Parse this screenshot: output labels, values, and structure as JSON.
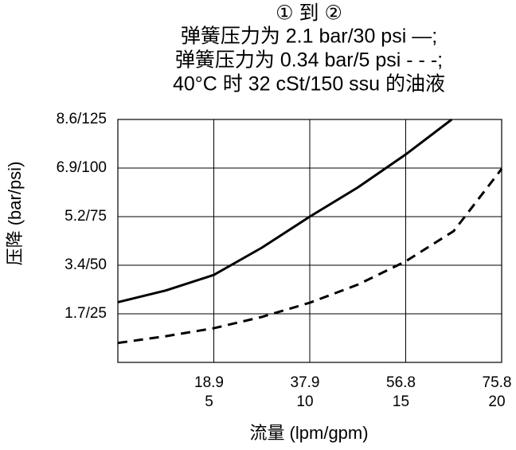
{
  "chart_data": {
    "type": "line",
    "title": [
      "① 到 ②",
      "弹簧压力为 2.1 bar/30 psi —;",
      "弹簧压力为 0.34 bar/5 psi - - -;",
      "40°C 时 32 cSt/150 ssu 的油液"
    ],
    "x_label": "流量 (lpm/gpm)",
    "y_label": "压降 (bar/psi)",
    "xlim": [
      0,
      20
    ],
    "ylim": [
      0,
      125
    ],
    "xticks": [
      {
        "value": 5,
        "label": [
          "18.9",
          "5"
        ]
      },
      {
        "value": 10,
        "label": [
          "37.9",
          "10"
        ]
      },
      {
        "value": 15,
        "label": [
          "56.8",
          "15"
        ]
      },
      {
        "value": 20,
        "label": [
          "75.8",
          "20"
        ]
      }
    ],
    "yticks": [
      {
        "value": 25,
        "label": "1.7/25"
      },
      {
        "value": 50,
        "label": "3.4/50"
      },
      {
        "value": 75,
        "label": "5.2/75"
      },
      {
        "value": 100,
        "label": "6.9/100"
      },
      {
        "value": 125,
        "label": "8.6/125"
      }
    ],
    "grid": true,
    "series": [
      {
        "color": "#000000",
        "dash": "solid",
        "x": [
          0,
          2.5,
          5,
          7.5,
          10,
          12.5,
          15,
          17.4
        ],
        "values": [
          31,
          37,
          45,
          59,
          75,
          90,
          107,
          125
        ]
      },
      {
        "color": "#000000",
        "dash": "dashed",
        "x": [
          0,
          2.5,
          5,
          7.5,
          10,
          12.5,
          15,
          17.5,
          20
        ],
        "values": [
          10,
          13.5,
          17.6,
          23.4,
          30.7,
          40,
          52,
          67.6,
          99.6
        ]
      }
    ]
  }
}
